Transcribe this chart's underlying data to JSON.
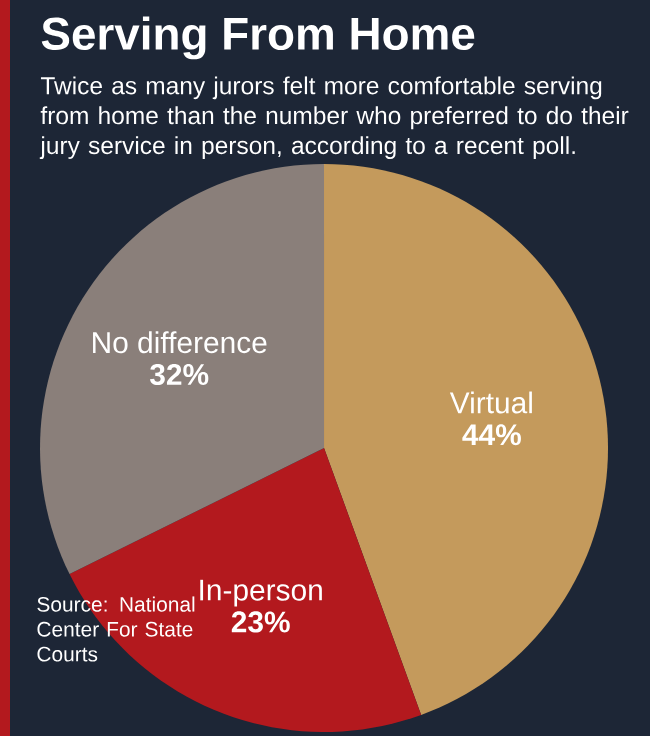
{
  "chart_data": {
    "type": "pie",
    "title": "Serving From Home",
    "subtitle": "Twice as many jurors felt more comfortable serving from home than the number who preferred to do their jury service in person, according to a recent poll.",
    "categories": [
      "Virtual",
      "In-person",
      "No difference"
    ],
    "values": [
      44,
      23,
      32
    ],
    "value_labels": [
      "44%",
      "23%",
      "32%"
    ],
    "colors": [
      "#c49a5c",
      "#b3191e",
      "#8a7f7a"
    ],
    "annotations": [
      "Source: National Center For State Courts"
    ]
  }
}
